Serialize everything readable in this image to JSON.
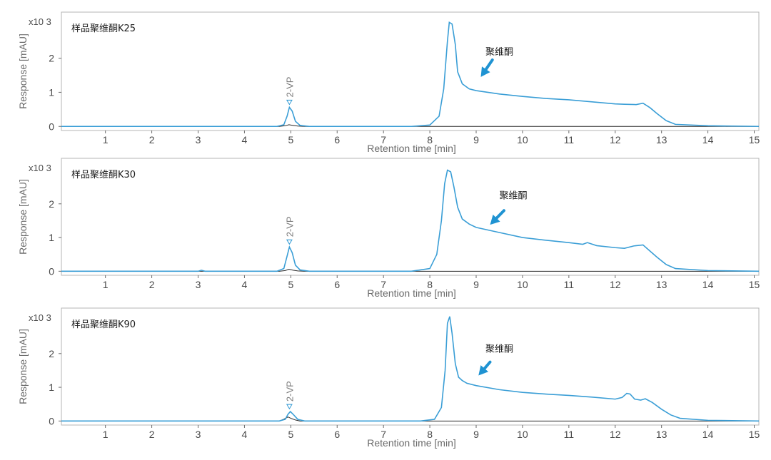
{
  "chart_data": [
    {
      "type": "line",
      "sample": "样品聚维酮K25",
      "annotation": "聚维酮",
      "peak_label": "2-VP",
      "xlabel": "Retention time [min]",
      "ylabel": "Response [mAU]",
      "y_multiplier": "x10 3",
      "xlim": [
        0.05,
        15.1
      ],
      "ylim": [
        -0.12,
        3.35
      ],
      "x_ticks": [
        1,
        2,
        3,
        4,
        5,
        6,
        7,
        8,
        9,
        10,
        11,
        12,
        13,
        14,
        15
      ],
      "y_ticks": [
        0,
        1,
        2
      ],
      "x_tick_labels": [
        "1",
        "2",
        "3",
        "4",
        "5",
        "6",
        "7",
        "8",
        "9",
        "10",
        "11",
        "12",
        "13",
        "14",
        "15"
      ],
      "y_tick_labels": [
        "0",
        "1",
        "2"
      ],
      "colors": {
        "trace": "#3a9ed6",
        "reference": "#2a2a2a",
        "arrow": "#1f93d2"
      },
      "arrow": {
        "from": [
          9.35,
          1.95
        ],
        "to": [
          9.1,
          1.45
        ]
      },
      "label_pos": [
        9.2,
        2.1
      ],
      "series": [
        {
          "x": [
            0.05,
            4.7,
            4.85,
            4.92,
            4.97,
            5.03,
            5.1,
            5.2,
            5.4,
            7.6,
            8.0,
            8.2,
            8.3,
            8.38,
            8.42,
            8.48,
            8.55,
            8.6,
            8.7,
            8.85,
            9.0,
            9.5,
            10.0,
            10.5,
            11.0,
            11.5,
            12.0,
            12.2,
            12.45,
            12.6,
            12.75,
            12.9,
            13.1,
            13.3,
            14.0,
            15.1
          ],
          "y": [
            0.0,
            0.0,
            0.05,
            0.3,
            0.56,
            0.45,
            0.15,
            0.03,
            0.0,
            0.0,
            0.04,
            0.3,
            1.1,
            2.5,
            3.05,
            3.0,
            2.4,
            1.6,
            1.25,
            1.1,
            1.05,
            0.95,
            0.88,
            0.82,
            0.78,
            0.72,
            0.66,
            0.65,
            0.64,
            0.68,
            0.55,
            0.38,
            0.17,
            0.06,
            0.02,
            0.0
          ]
        },
        {
          "x": [
            0.05,
            4.75,
            4.88,
            4.96,
            5.05,
            5.15,
            5.3,
            15.1
          ],
          "y": [
            0.0,
            0.0,
            0.02,
            0.05,
            0.03,
            0.01,
            0.0,
            0.0
          ]
        }
      ]
    },
    {
      "type": "line",
      "sample": "样品聚维酮K30",
      "annotation": "聚维酮",
      "peak_label": "2-VP",
      "xlabel": "Retention time [min]",
      "ylabel": "Response [mAU]",
      "y_multiplier": "x10 3",
      "xlim": [
        0.05,
        15.1
      ],
      "ylim": [
        -0.12,
        3.35
      ],
      "x_ticks": [
        1,
        2,
        3,
        4,
        5,
        6,
        7,
        8,
        9,
        10,
        11,
        12,
        13,
        14,
        15
      ],
      "y_ticks": [
        0,
        1,
        2
      ],
      "x_tick_labels": [
        "1",
        "2",
        "3",
        "4",
        "5",
        "6",
        "7",
        "8",
        "9",
        "10",
        "11",
        "12",
        "13",
        "14",
        "15"
      ],
      "y_tick_labels": [
        "0",
        "1",
        "2"
      ],
      "colors": {
        "trace": "#3a9ed6",
        "reference": "#2a2a2a",
        "arrow": "#1f93d2"
      },
      "arrow": {
        "from": [
          9.6,
          1.8
        ],
        "to": [
          9.3,
          1.38
        ]
      },
      "label_pos": [
        9.5,
        2.15
      ],
      "series": [
        {
          "x": [
            0.05,
            3.0,
            3.07,
            3.15,
            4.7,
            4.85,
            4.92,
            4.97,
            5.03,
            5.1,
            5.2,
            5.4,
            7.6,
            8.0,
            8.15,
            8.25,
            8.32,
            8.38,
            8.45,
            8.52,
            8.6,
            8.7,
            8.85,
            9.0,
            9.5,
            10.0,
            10.5,
            11.0,
            11.3,
            11.4,
            11.6,
            12.0,
            12.2,
            12.4,
            12.6,
            12.75,
            12.9,
            13.1,
            13.3,
            14.0,
            15.1
          ],
          "y": [
            0.0,
            0.0,
            0.03,
            0.0,
            0.0,
            0.08,
            0.45,
            0.72,
            0.55,
            0.18,
            0.04,
            0.0,
            0.0,
            0.08,
            0.5,
            1.5,
            2.6,
            3.0,
            2.95,
            2.5,
            1.9,
            1.55,
            1.4,
            1.3,
            1.15,
            1.0,
            0.92,
            0.85,
            0.8,
            0.85,
            0.76,
            0.7,
            0.68,
            0.75,
            0.78,
            0.6,
            0.42,
            0.2,
            0.08,
            0.02,
            0.0
          ]
        },
        {
          "x": [
            0.05,
            4.75,
            4.88,
            4.96,
            5.05,
            5.15,
            5.3,
            15.1
          ],
          "y": [
            0.0,
            0.0,
            0.02,
            0.06,
            0.03,
            0.01,
            0.0,
            0.0
          ]
        }
      ]
    },
    {
      "type": "line",
      "sample": "样品聚维酮K90",
      "annotation": "聚维酮",
      "peak_label": "2-VP",
      "xlabel": "Retention time [min]",
      "ylabel": "Response [mAU]",
      "y_multiplier": "x10 3",
      "xlim": [
        0.05,
        15.1
      ],
      "ylim": [
        -0.12,
        3.35
      ],
      "x_ticks": [
        1,
        2,
        3,
        4,
        5,
        6,
        7,
        8,
        9,
        10,
        11,
        12,
        13,
        14,
        15
      ],
      "y_ticks": [
        0,
        1,
        2
      ],
      "x_tick_labels": [
        "1",
        "2",
        "3",
        "4",
        "5",
        "6",
        "7",
        "8",
        "9",
        "10",
        "11",
        "12",
        "13",
        "14",
        "15"
      ],
      "y_tick_labels": [
        "0",
        "1",
        "2"
      ],
      "colors": {
        "trace": "#3a9ed6",
        "reference": "#2a2a2a",
        "arrow": "#1f93d2"
      },
      "arrow": {
        "from": [
          9.3,
          1.75
        ],
        "to": [
          9.05,
          1.35
        ]
      },
      "label_pos": [
        9.2,
        2.05
      ],
      "series": [
        {
          "x": [
            0.05,
            4.75,
            4.88,
            4.94,
            4.99,
            5.05,
            5.15,
            5.3,
            7.8,
            8.1,
            8.25,
            8.33,
            8.38,
            8.43,
            8.48,
            8.55,
            8.62,
            8.7,
            8.8,
            9.0,
            9.5,
            10.0,
            10.5,
            11.0,
            11.5,
            12.0,
            12.15,
            12.25,
            12.32,
            12.42,
            12.55,
            12.65,
            12.8,
            13.0,
            13.2,
            13.4,
            14.0,
            15.1
          ],
          "y": [
            0.0,
            0.0,
            0.05,
            0.2,
            0.28,
            0.2,
            0.05,
            0.0,
            0.0,
            0.05,
            0.4,
            1.5,
            2.9,
            3.1,
            2.6,
            1.7,
            1.3,
            1.2,
            1.12,
            1.05,
            0.93,
            0.85,
            0.8,
            0.76,
            0.71,
            0.65,
            0.7,
            0.82,
            0.8,
            0.65,
            0.62,
            0.66,
            0.55,
            0.35,
            0.18,
            0.08,
            0.02,
            0.0
          ]
        },
        {
          "x": [
            0.05,
            4.75,
            4.86,
            4.94,
            5.02,
            5.1,
            5.2,
            15.1
          ],
          "y": [
            0.0,
            0.0,
            0.06,
            0.12,
            0.07,
            0.03,
            0.0,
            0.0
          ]
        }
      ]
    }
  ]
}
